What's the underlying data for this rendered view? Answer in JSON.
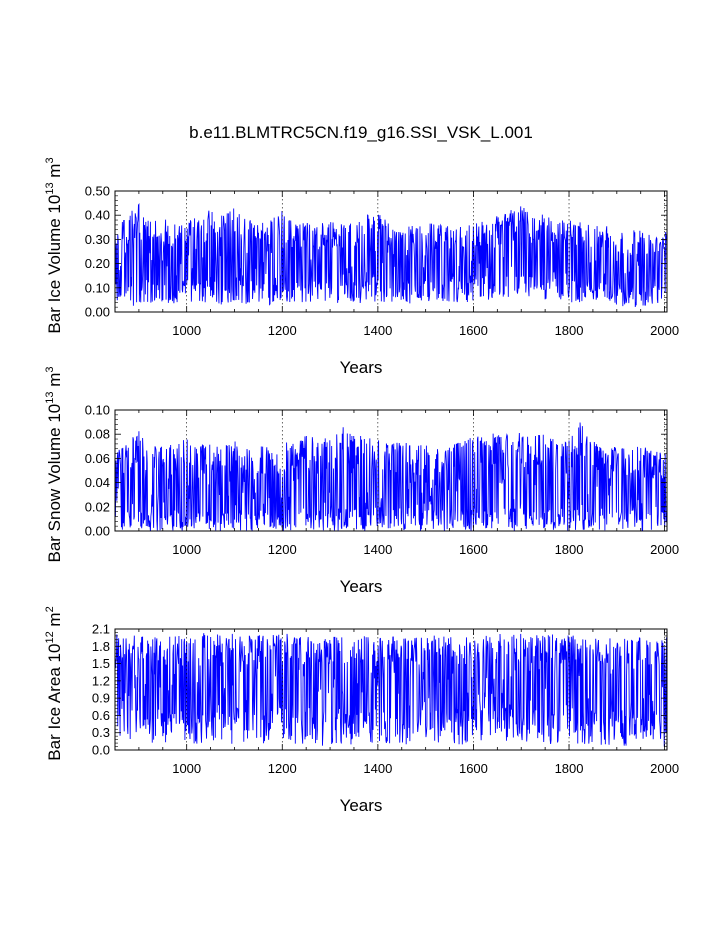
{
  "title": "b.e11.BLMTRC5CN.f19_g16.SSI_VSK_L.001",
  "colors": {
    "series": "#0000ff",
    "axis": "#000000",
    "grid": "#000000"
  },
  "chart_data": [
    {
      "type": "line",
      "xlabel": "Years",
      "ylabel": {
        "main": "Bar Ice Volume 10",
        "exp": "13",
        "unit": " m",
        "unit_exp": "3"
      },
      "xlim": [
        850,
        2005
      ],
      "ylim": [
        0,
        0.5
      ],
      "xticks": [
        "1000",
        "1200",
        "1400",
        "1600",
        "1800",
        "2000"
      ],
      "yticks": [
        "0.00",
        "0.10",
        "0.20",
        "0.30",
        "0.40",
        "0.50"
      ],
      "grid": "vertical dotted",
      "series": [
        {
          "x": [
            850,
            875,
            900,
            925,
            950,
            975,
            1000,
            1025,
            1050,
            1075,
            1100,
            1125,
            1150,
            1175,
            1200,
            1225,
            1250,
            1275,
            1300,
            1325,
            1350,
            1375,
            1400,
            1425,
            1450,
            1475,
            1500,
            1525,
            1550,
            1575,
            1600,
            1625,
            1650,
            1675,
            1700,
            1725,
            1750,
            1775,
            1800,
            1825,
            1850,
            1875,
            1900,
            1925,
            1950,
            1975,
            2005
          ],
          "max": [
            0.37,
            0.39,
            0.46,
            0.38,
            0.39,
            0.37,
            0.37,
            0.4,
            0.45,
            0.4,
            0.43,
            0.38,
            0.38,
            0.39,
            0.43,
            0.36,
            0.37,
            0.36,
            0.38,
            0.37,
            0.37,
            0.4,
            0.42,
            0.36,
            0.35,
            0.36,
            0.37,
            0.36,
            0.36,
            0.37,
            0.38,
            0.38,
            0.4,
            0.42,
            0.44,
            0.42,
            0.4,
            0.37,
            0.39,
            0.37,
            0.36,
            0.36,
            0.33,
            0.33,
            0.35,
            0.32,
            0.34
          ],
          "mean": [
            0.19,
            0.19,
            0.2,
            0.19,
            0.19,
            0.19,
            0.2,
            0.19,
            0.2,
            0.19,
            0.2,
            0.19,
            0.19,
            0.19,
            0.2,
            0.19,
            0.19,
            0.19,
            0.19,
            0.19,
            0.19,
            0.19,
            0.2,
            0.19,
            0.19,
            0.19,
            0.19,
            0.19,
            0.19,
            0.19,
            0.2,
            0.2,
            0.21,
            0.21,
            0.22,
            0.21,
            0.21,
            0.2,
            0.2,
            0.19,
            0.19,
            0.18,
            0.17,
            0.17,
            0.17,
            0.17,
            0.17
          ],
          "min": [
            0.03,
            0.02,
            0.03,
            0.03,
            0.04,
            0.03,
            0.04,
            0.03,
            0.04,
            0.03,
            0.04,
            0.03,
            0.04,
            0.03,
            0.04,
            0.03,
            0.04,
            0.04,
            0.03,
            0.04,
            0.03,
            0.04,
            0.04,
            0.03,
            0.04,
            0.03,
            0.04,
            0.03,
            0.04,
            0.04,
            0.04,
            0.04,
            0.05,
            0.05,
            0.06,
            0.05,
            0.05,
            0.04,
            0.04,
            0.03,
            0.03,
            0.03,
            0.02,
            0.02,
            0.02,
            0.03,
            0.03
          ]
        }
      ]
    },
    {
      "type": "line",
      "xlabel": "Years",
      "ylabel": {
        "main": "Bar Snow Volume 10",
        "exp": "13",
        "unit": " m",
        "unit_exp": "3"
      },
      "xlim": [
        850,
        2005
      ],
      "ylim": [
        0,
        0.1
      ],
      "xticks": [
        "1000",
        "1200",
        "1400",
        "1600",
        "1800",
        "2000"
      ],
      "yticks": [
        "0.00",
        "0.02",
        "0.04",
        "0.06",
        "0.08",
        "0.10"
      ],
      "grid": "vertical dotted",
      "series": [
        {
          "x": [
            850,
            875,
            900,
            925,
            950,
            975,
            1000,
            1025,
            1050,
            1075,
            1100,
            1125,
            1150,
            1175,
            1200,
            1225,
            1250,
            1275,
            1300,
            1325,
            1350,
            1375,
            1400,
            1425,
            1450,
            1475,
            1500,
            1525,
            1550,
            1575,
            1600,
            1625,
            1650,
            1675,
            1700,
            1725,
            1750,
            1775,
            1800,
            1825,
            1850,
            1875,
            1900,
            1925,
            1950,
            1975,
            2005
          ],
          "max": [
            0.07,
            0.072,
            0.083,
            0.068,
            0.074,
            0.07,
            0.078,
            0.072,
            0.074,
            0.07,
            0.076,
            0.07,
            0.072,
            0.068,
            0.077,
            0.072,
            0.082,
            0.076,
            0.078,
            0.09,
            0.079,
            0.081,
            0.077,
            0.072,
            0.076,
            0.07,
            0.075,
            0.074,
            0.071,
            0.074,
            0.079,
            0.077,
            0.083,
            0.08,
            0.082,
            0.079,
            0.081,
            0.074,
            0.075,
            0.091,
            0.075,
            0.071,
            0.07,
            0.068,
            0.073,
            0.067,
            0.066
          ],
          "mean": [
            0.03,
            0.03,
            0.031,
            0.03,
            0.03,
            0.029,
            0.03,
            0.029,
            0.03,
            0.029,
            0.03,
            0.029,
            0.029,
            0.029,
            0.03,
            0.03,
            0.031,
            0.031,
            0.031,
            0.032,
            0.031,
            0.031,
            0.031,
            0.03,
            0.03,
            0.03,
            0.03,
            0.03,
            0.03,
            0.03,
            0.031,
            0.031,
            0.032,
            0.032,
            0.033,
            0.032,
            0.032,
            0.031,
            0.031,
            0.031,
            0.03,
            0.029,
            0.029,
            0.028,
            0.029,
            0.028,
            0.028
          ],
          "min": [
            0.0,
            0.0,
            0.0,
            0.0,
            0.0,
            0.0,
            0.0,
            0.0,
            0.0,
            0.0,
            0.0,
            0.0,
            0.0,
            0.0,
            0.0,
            0.0,
            0.0,
            0.0,
            0.0,
            0.0,
            0.0,
            0.0,
            0.0,
            0.0,
            0.0,
            0.0,
            0.0,
            0.0,
            0.0,
            0.0,
            0.0,
            0.0,
            0.0,
            0.0,
            0.0,
            0.0,
            0.0,
            0.0,
            0.0,
            0.0,
            0.0,
            0.0,
            0.0,
            0.0,
            0.0,
            0.0,
            0.0
          ]
        }
      ]
    },
    {
      "type": "line",
      "xlabel": "Years",
      "ylabel": {
        "main": "Bar Ice Area 10",
        "exp": "12",
        "unit": " m",
        "unit_exp": "2"
      },
      "xlim": [
        850,
        2005
      ],
      "ylim": [
        0,
        2.1
      ],
      "xticks": [
        "1000",
        "1200",
        "1400",
        "1600",
        "1800",
        "2000"
      ],
      "yticks": [
        "0.0",
        "0.3",
        "0.6",
        "0.9",
        "1.2",
        "1.5",
        "1.8",
        "2.1"
      ],
      "grid": "vertical dotted",
      "series": [
        {
          "x": [
            850,
            875,
            900,
            925,
            950,
            975,
            1000,
            1025,
            1050,
            1075,
            1100,
            1125,
            1150,
            1175,
            1200,
            1225,
            1250,
            1275,
            1300,
            1325,
            1350,
            1375,
            1400,
            1425,
            1450,
            1475,
            1500,
            1525,
            1550,
            1575,
            1600,
            1625,
            1650,
            1675,
            1700,
            1725,
            1750,
            1775,
            1800,
            1825,
            1850,
            1875,
            1900,
            1925,
            1950,
            1975,
            2005
          ],
          "max": [
            2.02,
            2.0,
            1.98,
            1.96,
            1.97,
            1.98,
            2.04,
            2.02,
            2.06,
            2.04,
            2.02,
            2.0,
            1.99,
            2.0,
            2.04,
            1.98,
            1.96,
            1.96,
            1.97,
            1.98,
            1.98,
            1.99,
            2.0,
            1.97,
            1.98,
            1.97,
            1.98,
            1.99,
            1.98,
            1.99,
            2.0,
            2.0,
            2.02,
            2.01,
            2.04,
            2.01,
            2.02,
            2.0,
            2.0,
            2.01,
            1.99,
            1.98,
            1.97,
            1.96,
            1.98,
            1.96,
            1.98
          ],
          "mean": [
            1.15,
            1.14,
            1.13,
            1.13,
            1.14,
            1.14,
            1.16,
            1.15,
            1.17,
            1.16,
            1.15,
            1.14,
            1.14,
            1.14,
            1.16,
            1.14,
            1.13,
            1.13,
            1.14,
            1.14,
            1.14,
            1.14,
            1.15,
            1.14,
            1.14,
            1.14,
            1.14,
            1.15,
            1.14,
            1.15,
            1.16,
            1.16,
            1.17,
            1.16,
            1.18,
            1.16,
            1.17,
            1.16,
            1.16,
            1.16,
            1.15,
            1.14,
            1.14,
            1.13,
            1.14,
            1.13,
            1.14
          ],
          "min": [
            0.15,
            0.12,
            0.1,
            0.12,
            0.14,
            0.1,
            0.12,
            0.1,
            0.14,
            0.12,
            0.1,
            0.08,
            0.12,
            0.1,
            0.14,
            0.08,
            0.1,
            0.06,
            0.08,
            0.1,
            0.06,
            0.08,
            0.12,
            0.1,
            0.08,
            0.06,
            0.1,
            0.12,
            0.1,
            0.08,
            0.12,
            0.1,
            0.14,
            0.12,
            0.16,
            0.12,
            0.1,
            0.08,
            0.12,
            0.1,
            0.08,
            0.06,
            0.1,
            0.04,
            0.06,
            0.04,
            0.06
          ]
        }
      ]
    }
  ]
}
